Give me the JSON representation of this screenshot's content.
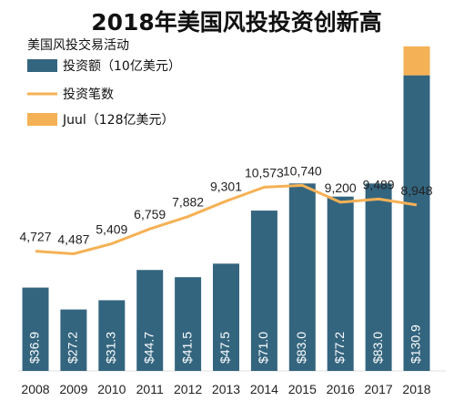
{
  "chart_data": {
    "type": "bar",
    "title": "2018年美国风投投资创新高",
    "subtitle": "美国风投交易活动",
    "categories": [
      "2008",
      "2009",
      "2010",
      "2011",
      "2012",
      "2013",
      "2014",
      "2015",
      "2016",
      "2017",
      "2018"
    ],
    "series": [
      {
        "name": "投资额（10亿美元）",
        "type": "bar",
        "color": "#34657f",
        "values": [
          36.9,
          27.2,
          31.3,
          44.7,
          41.5,
          47.5,
          71.0,
          83.0,
          77.2,
          83.0,
          130.9
        ],
        "labels": [
          "$36.9",
          "$27.2",
          "$31.3",
          "$44.7",
          "$41.5",
          "$47.5",
          "$71.0",
          "$83.0",
          "$77.2",
          "$83.0",
          "$130.9"
        ]
      },
      {
        "name": "投资笔数",
        "type": "line",
        "color": "#f5b155",
        "values": [
          4727,
          4487,
          5409,
          6759,
          7882,
          9301,
          10573,
          10740,
          9200,
          9489,
          8948
        ],
        "labels": [
          "4,727",
          "4,487",
          "5,409",
          "6,759",
          "7,882",
          "9,301",
          "10,573",
          "10,740",
          "9,200",
          "9,489",
          "8,948"
        ]
      },
      {
        "name": "Juul（128亿美元）",
        "type": "bar-stack",
        "color": "#f5b155",
        "category": "2018",
        "value": 12.8
      }
    ],
    "legend": [
      "投资额（10亿美元）",
      "投资笔数",
      "Juul（128亿美元）"
    ],
    "legend_position": "top-left",
    "grid": false
  }
}
